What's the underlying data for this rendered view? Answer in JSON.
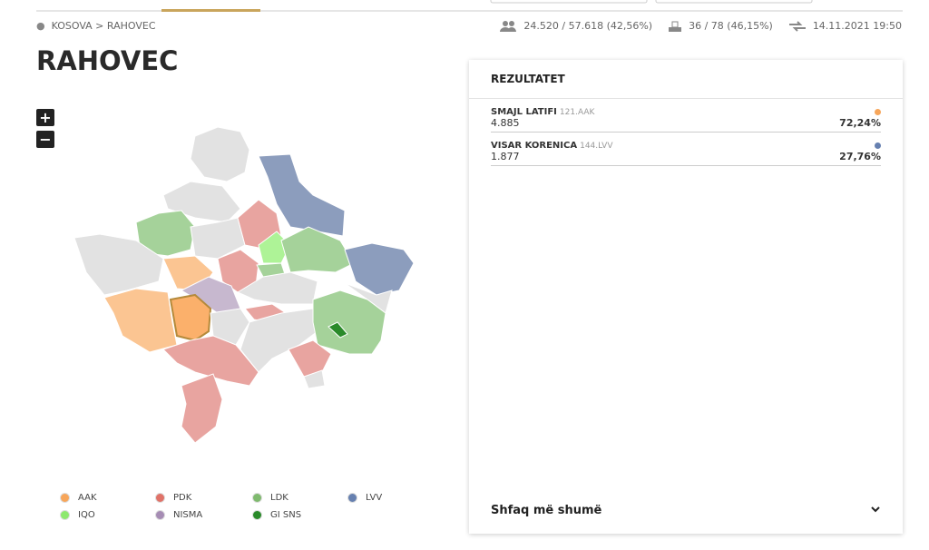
{
  "breadcrumb": [
    "KOSOVA",
    "RAHOVEC"
  ],
  "stats": {
    "turnout": "24.520 / 57.618 (42,56%)",
    "stations": "36 / 78 (46,15%)",
    "updated": "14.11.2021 19:50"
  },
  "title": "RAHOVEC",
  "zoom": {
    "in": "+",
    "out": "−"
  },
  "results": {
    "title": "REZULTATET",
    "candidates": [
      {
        "name": "SMAJL LATIFI",
        "code": "121.AAK",
        "votes": "4.885",
        "share": "72,24%",
        "color": "#f7a65a"
      },
      {
        "name": "VISAR KORENICA",
        "code": "144.LVV",
        "votes": "1.877",
        "share": "27,76%",
        "color": "#6680b0"
      }
    ],
    "more": "Shfaq më shumë"
  },
  "legend": [
    {
      "label": "AAK",
      "color": "#f7a65a"
    },
    {
      "label": "PDK",
      "color": "#e07268"
    },
    {
      "label": "LDK",
      "color": "#7fba6e"
    },
    {
      "label": "LVV",
      "color": "#6680b0"
    },
    {
      "label": "IQO",
      "color": "#8ee86f"
    },
    {
      "label": "NISMA",
      "color": "#a68db4"
    },
    {
      "label": "GI SNS",
      "color": "#2a8a2a"
    }
  ]
}
